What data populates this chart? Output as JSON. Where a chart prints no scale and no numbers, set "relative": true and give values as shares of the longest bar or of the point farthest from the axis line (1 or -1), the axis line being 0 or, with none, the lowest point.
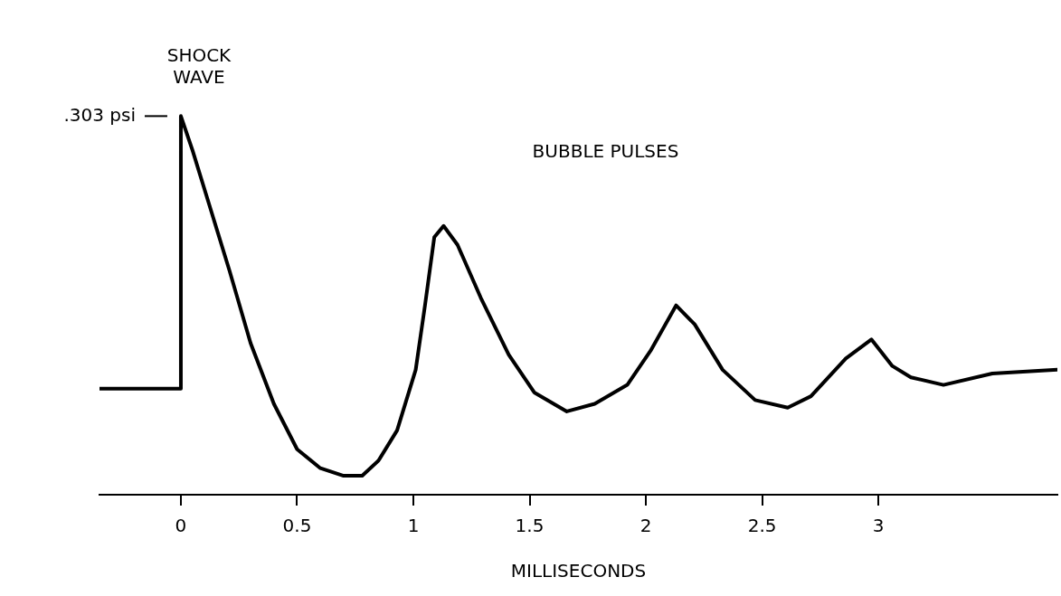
{
  "chart_data": {
    "type": "line",
    "relative": true,
    "xlabel": "MILLISECONDS",
    "color": "#000000",
    "marker": "none",
    "line_style": "solid",
    "grid": false,
    "legend": false,
    "tick_labels": "x",
    "x": [
      -0.35,
      0,
      0,
      0.05,
      0.13,
      0.21,
      0.3,
      0.4,
      0.5,
      0.6,
      0.7,
      0.78,
      0.85,
      0.93,
      1.01,
      1.05,
      1.09,
      1.13,
      1.19,
      1.29,
      1.41,
      1.52,
      1.66,
      1.78,
      1.92,
      2.02,
      2.13,
      2.21,
      2.33,
      2.47,
      2.61,
      2.71,
      2.86,
      2.97,
      3.06,
      3.14,
      3.28,
      3.49,
      3.77
    ],
    "values": [
      0.28,
      0.28,
      1,
      0.91,
      0.75,
      0.59,
      0.4,
      0.24,
      0.12,
      0.07,
      0.05,
      0.05,
      0.09,
      0.17,
      0.33,
      0.5,
      0.68,
      0.71,
      0.66,
      0.52,
      0.37,
      0.27,
      0.22,
      0.24,
      0.29,
      0.38,
      0.5,
      0.45,
      0.33,
      0.25,
      0.23,
      0.26,
      0.36,
      0.41,
      0.34,
      0.31,
      0.29,
      0.32,
      0.33
    ],
    "xlim": [
      -0.35,
      3.77
    ],
    "xticks": [
      0,
      0.5,
      1,
      1.5,
      2,
      2.5,
      3
    ],
    "annotations": [
      {
        "text": "SHOCK WAVE",
        "x": 0,
        "y": 1
      },
      {
        "text": ".303 psi",
        "x": 0,
        "y": 1
      },
      "BUBBLE PULSES"
    ]
  }
}
